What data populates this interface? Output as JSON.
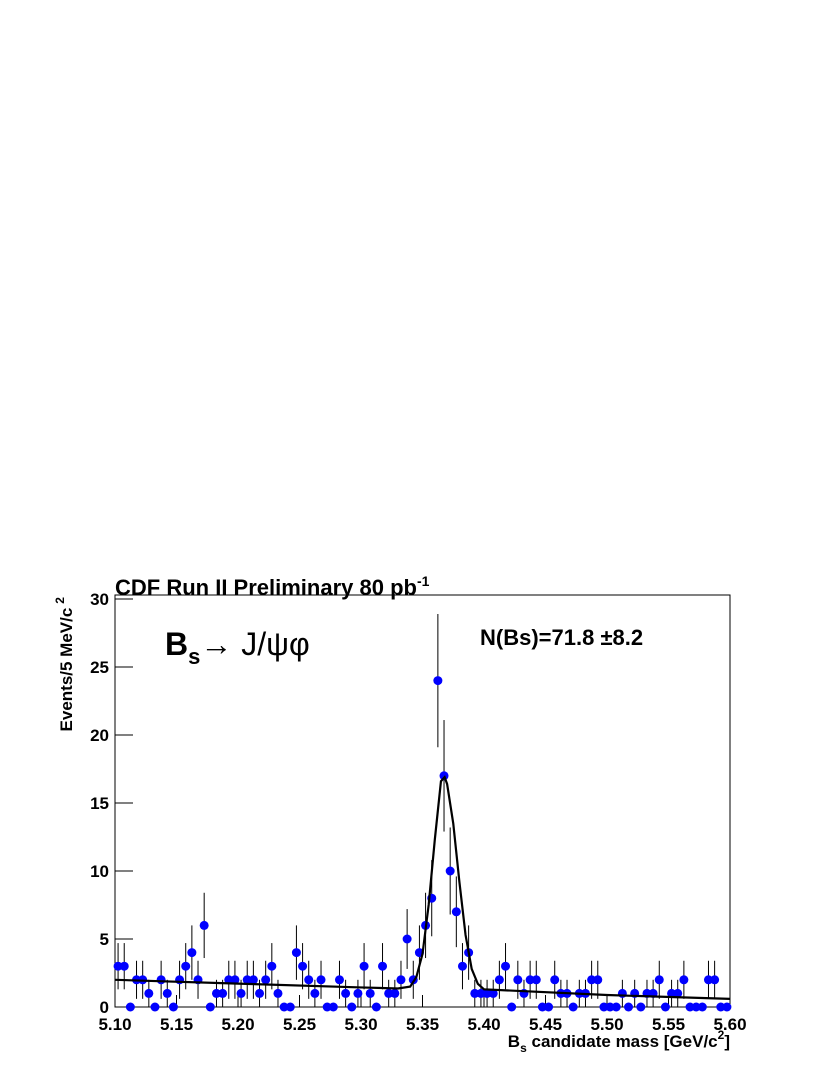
{
  "chart_data": {
    "type": "scatter",
    "title": {
      "text": "CDF Run II Preliminary 80 pb",
      "sup": "-1"
    },
    "annotation": {
      "main": "B",
      "sub": "s",
      "rest": "→ J/ψφ"
    },
    "yield_label": "N(Bs)=71.8 ±8.2",
    "xlabel": {
      "main": "B",
      "sub": "s",
      "rest": " candidate mass [GeV/c",
      "sup": "2",
      "end": "]"
    },
    "ylabel": {
      "text": "Events/5 MeV/c",
      "sup": "2"
    },
    "xlim": [
      5.1,
      5.6
    ],
    "ylim": [
      0,
      30
    ],
    "xticks": [
      {
        "value": 5.1,
        "label": "5.10"
      },
      {
        "value": 5.15,
        "label": "5.15"
      },
      {
        "value": 5.2,
        "label": "5.20"
      },
      {
        "value": 5.25,
        "label": "5.25"
      },
      {
        "value": 5.3,
        "label": "5.30"
      },
      {
        "value": 5.35,
        "label": "5.35"
      },
      {
        "value": 5.4,
        "label": "5.40"
      },
      {
        "value": 5.45,
        "label": "5.45"
      },
      {
        "value": 5.5,
        "label": "5.50"
      },
      {
        "value": 5.55,
        "label": "5.55"
      },
      {
        "value": 5.6,
        "label": "5.60"
      }
    ],
    "yticks": [
      0,
      5,
      10,
      15,
      20,
      25,
      30
    ],
    "series": [
      {
        "color": "#0000ff",
        "x": [
          5.1025,
          5.1075,
          5.1125,
          5.1175,
          5.1225,
          5.1275,
          5.1325,
          5.1375,
          5.1425,
          5.1475,
          5.1525,
          5.1575,
          5.1625,
          5.1675,
          5.1725,
          5.1775,
          5.1825,
          5.1875,
          5.1925,
          5.1975,
          5.2025,
          5.2075,
          5.2125,
          5.2175,
          5.2225,
          5.2275,
          5.2325,
          5.2375,
          5.2425,
          5.2475,
          5.2525,
          5.2575,
          5.2625,
          5.2675,
          5.2725,
          5.2775,
          5.2825,
          5.2875,
          5.2925,
          5.2975,
          5.3025,
          5.3075,
          5.3125,
          5.3175,
          5.3225,
          5.3275,
          5.3325,
          5.3375,
          5.3425,
          5.3475,
          5.3525,
          5.3575,
          5.3625,
          5.3675,
          5.3725,
          5.3775,
          5.3825,
          5.3875,
          5.3925,
          5.3975,
          5.4025,
          5.4075,
          5.4125,
          5.4175,
          5.4225,
          5.4275,
          5.4325,
          5.4375,
          5.4425,
          5.4475,
          5.4525,
          5.4575,
          5.4625,
          5.4675,
          5.4725,
          5.4775,
          5.4825,
          5.4875,
          5.4925,
          5.4975,
          5.5025,
          5.5075,
          5.5125,
          5.5175,
          5.5225,
          5.5275,
          5.5325,
          5.5375,
          5.5425,
          5.5475,
          5.5525,
          5.5575,
          5.5625,
          5.5675,
          5.5725,
          5.5775,
          5.5825,
          5.5875,
          5.5925,
          5.5975
        ],
        "values": [
          3,
          3,
          0,
          2,
          2,
          1,
          0,
          2,
          1,
          0,
          2,
          3,
          4,
          2,
          6,
          0,
          1,
          1,
          2,
          2,
          1,
          2,
          2,
          1,
          2,
          3,
          1,
          0,
          0,
          4,
          3,
          2,
          1,
          2,
          0,
          0,
          2,
          1,
          0,
          1,
          3,
          1,
          0,
          3,
          1,
          1,
          2,
          5,
          2,
          4,
          6,
          8,
          24,
          17,
          10,
          7,
          3,
          4,
          1,
          1,
          1,
          1,
          2,
          3,
          0,
          2,
          1,
          2,
          2,
          0,
          0,
          2,
          1,
          1,
          0,
          1,
          1,
          2,
          2,
          0,
          0,
          0,
          1,
          0,
          1,
          0,
          1,
          1,
          2,
          0,
          1,
          1,
          2,
          0,
          0,
          0,
          2,
          2,
          0,
          0
        ],
        "errors": [
          1.7,
          1.7,
          0,
          1.4,
          1.4,
          1,
          0,
          1.4,
          1,
          0,
          1.4,
          1.7,
          2,
          1.4,
          2.4,
          0,
          1,
          1,
          1.4,
          1.4,
          1,
          1.4,
          1.4,
          1,
          1.4,
          1.7,
          1,
          0,
          0,
          2,
          1.7,
          1.4,
          1,
          1.4,
          0,
          0,
          1.4,
          1,
          0,
          1,
          1.7,
          1,
          0,
          1.7,
          1,
          1,
          1.4,
          2.2,
          1.4,
          2,
          2.4,
          2.8,
          4.9,
          4.1,
          3.2,
          2.6,
          1.7,
          2,
          1,
          1,
          1,
          1,
          1.4,
          1.7,
          0,
          1.4,
          1,
          1.4,
          1.4,
          0,
          0,
          1.4,
          1,
          1,
          0,
          1,
          1,
          1.4,
          1.4,
          0,
          0,
          0,
          1,
          0,
          1,
          0,
          1,
          1,
          1.4,
          0,
          1,
          1,
          1.4,
          0,
          0,
          0,
          1.4,
          1.4,
          0,
          0
        ]
      },
      {
        "color": "#000000",
        "x": [
          5.1,
          5.2,
          5.3,
          5.33,
          5.34,
          5.345,
          5.35,
          5.355,
          5.36,
          5.365,
          5.368,
          5.37,
          5.375,
          5.38,
          5.385,
          5.39,
          5.395,
          5.4,
          5.5,
          5.6
        ],
        "values": [
          2.0,
          1.72,
          1.44,
          1.36,
          1.5,
          2.2,
          3.9,
          7.5,
          12.3,
          16.6,
          16.9,
          16.4,
          13.5,
          9.2,
          5.3,
          2.8,
          1.7,
          1.3,
          0.88,
          0.6
        ]
      }
    ]
  }
}
